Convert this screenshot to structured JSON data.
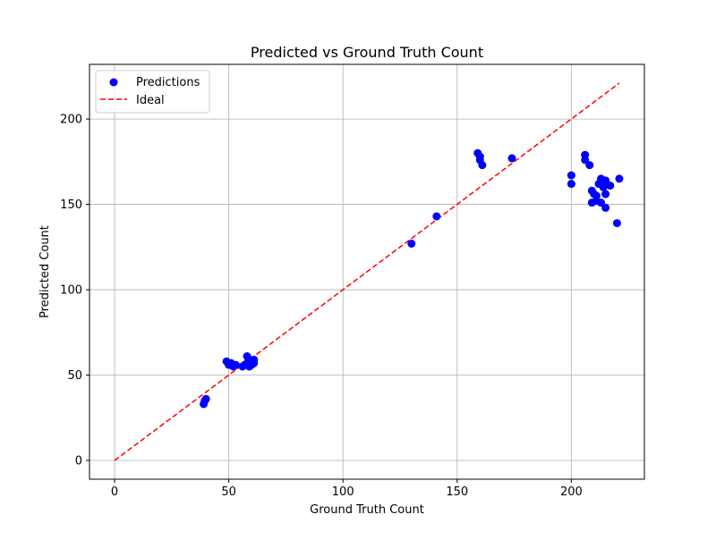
{
  "chart_data": {
    "type": "scatter",
    "title": "Predicted vs Ground Truth Count",
    "xlabel": "Ground Truth Count",
    "ylabel": "Predicted Count",
    "xlim": [
      -11,
      232
    ],
    "ylim": [
      -11,
      232
    ],
    "xticks": [
      0,
      50,
      100,
      150,
      200
    ],
    "yticks": [
      0,
      50,
      100,
      150,
      200
    ],
    "grid": true,
    "legend_position": "top-left",
    "series": [
      {
        "name": "Predictions",
        "kind": "scatter",
        "color": "#0000ff",
        "points": [
          [
            39,
            33
          ],
          [
            39.5,
            35
          ],
          [
            40,
            36
          ],
          [
            49,
            58
          ],
          [
            50,
            56
          ],
          [
            51,
            57
          ],
          [
            52,
            55
          ],
          [
            53,
            56
          ],
          [
            56,
            55
          ],
          [
            57,
            56
          ],
          [
            58,
            57
          ],
          [
            58,
            61
          ],
          [
            59,
            55
          ],
          [
            59,
            59
          ],
          [
            60,
            56
          ],
          [
            60,
            58
          ],
          [
            61,
            57
          ],
          [
            61,
            59
          ],
          [
            130,
            127
          ],
          [
            141,
            143
          ],
          [
            159,
            180
          ],
          [
            160,
            178
          ],
          [
            160,
            176
          ],
          [
            161,
            173
          ],
          [
            174,
            177
          ],
          [
            200,
            167
          ],
          [
            200,
            162
          ],
          [
            206,
            179
          ],
          [
            206,
            176
          ],
          [
            208,
            173
          ],
          [
            209,
            158
          ],
          [
            209,
            151
          ],
          [
            210,
            156
          ],
          [
            211,
            155
          ],
          [
            211,
            152
          ],
          [
            212,
            162
          ],
          [
            213,
            165
          ],
          [
            213,
            151
          ],
          [
            214,
            160
          ],
          [
            215,
            164
          ],
          [
            215,
            156
          ],
          [
            215,
            148
          ],
          [
            217,
            161
          ],
          [
            220,
            139
          ],
          [
            221,
            165
          ]
        ]
      },
      {
        "name": "Ideal",
        "kind": "line",
        "style": "dashed",
        "color": "#ff0000",
        "points": [
          [
            0,
            0
          ],
          [
            221,
            221
          ]
        ]
      }
    ]
  }
}
